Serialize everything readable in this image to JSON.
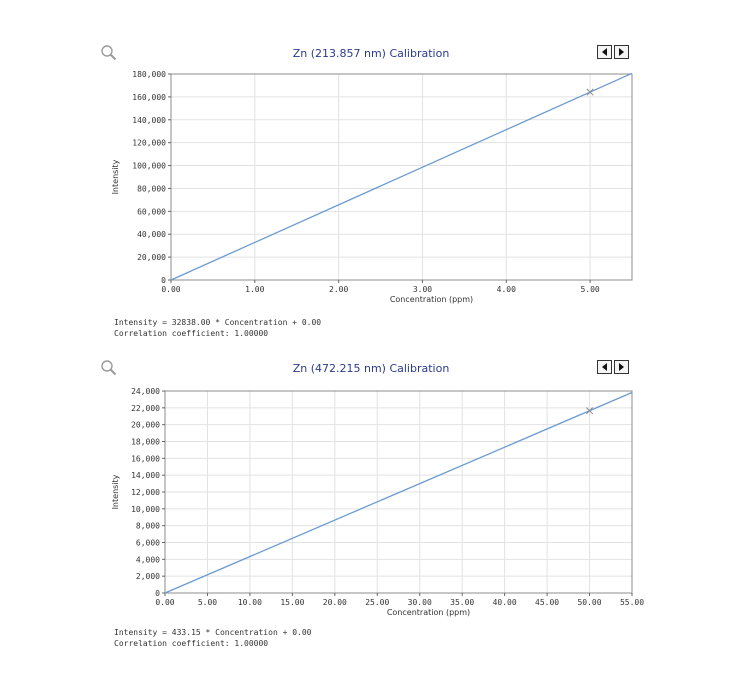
{
  "chart_data": [
    {
      "type": "line",
      "title": "Zn (213.857 nm) Calibration",
      "xlabel": "Concentration (ppm)",
      "ylabel": "Intensity",
      "xlim": [
        0,
        5.5
      ],
      "ylim": [
        0,
        180000
      ],
      "xticks": [
        0,
        1,
        2,
        3,
        4,
        5
      ],
      "xtick_labels": [
        "0.00",
        "1.00",
        "2.00",
        "3.00",
        "4.00",
        "5.00"
      ],
      "yticks": [
        0,
        20000,
        40000,
        60000,
        80000,
        100000,
        120000,
        140000,
        160000,
        180000
      ],
      "ytick_labels": [
        "0",
        "20,000",
        "40,000",
        "60,000",
        "80,000",
        "100,000",
        "120,000",
        "140,000",
        "160,000",
        "180,000"
      ],
      "grid": true,
      "series": [
        {
          "x": [
            0,
            5.5
          ],
          "y": [
            0,
            180609
          ],
          "color": "#6b9bd2"
        }
      ],
      "points": [
        {
          "x": 5.0,
          "y": 164190,
          "marker": "x"
        }
      ],
      "equation": "Intensity = 32838.00 * Concentration + 0.00",
      "correlation": "Correlation coefficient: 1.00000"
    },
    {
      "type": "line",
      "title": "Zn (472.215 nm) Calibration",
      "xlabel": "Concentration (ppm)",
      "ylabel": "Intensity",
      "xlim": [
        0,
        55
      ],
      "ylim": [
        0,
        24000
      ],
      "xticks": [
        0,
        5,
        10,
        15,
        20,
        25,
        30,
        35,
        40,
        45,
        50,
        55
      ],
      "xtick_labels": [
        "0.00",
        "5.00",
        "10.00",
        "15.00",
        "20.00",
        "25.00",
        "30.00",
        "35.00",
        "40.00",
        "45.00",
        "50.00",
        "55.00"
      ],
      "yticks": [
        0,
        2000,
        4000,
        6000,
        8000,
        10000,
        12000,
        14000,
        16000,
        18000,
        20000,
        22000,
        24000
      ],
      "ytick_labels": [
        "0",
        "2,000",
        "4,000",
        "6,000",
        "8,000",
        "10,000",
        "12,000",
        "14,000",
        "16,000",
        "18,000",
        "20,000",
        "22,000",
        "24,000"
      ],
      "grid": true,
      "series": [
        {
          "x": [
            0,
            55
          ],
          "y": [
            0,
            23823
          ],
          "color": "#6b9bd2"
        }
      ],
      "points": [
        {
          "x": 50,
          "y": 21657,
          "marker": "x"
        }
      ],
      "equation": "Intensity = 433.15 * Concentration + 0.00",
      "correlation": "Correlation coefficient: 1.00000"
    }
  ],
  "icons": {
    "zoom": "magnifier-icon",
    "prev": "arrow-left-icon",
    "next": "arrow-right-icon"
  }
}
